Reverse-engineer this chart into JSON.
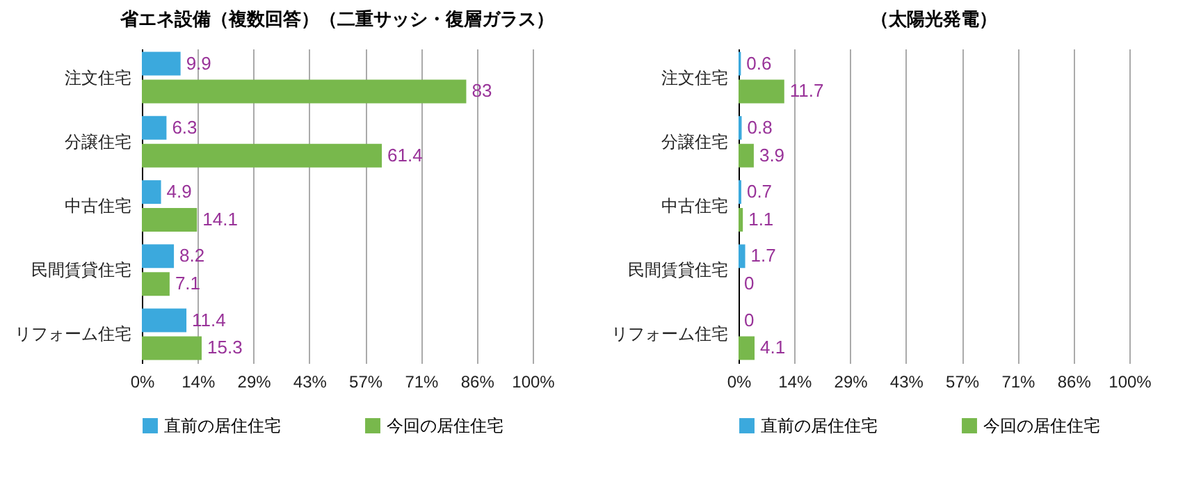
{
  "chart_data": [
    {
      "type": "bar",
      "orientation": "horizontal",
      "title": "省エネ設備（複数回答）（二重サッシ・復層ガラス）",
      "categories": [
        "注文住宅",
        "分譲住宅",
        "中古住宅",
        "民間賃貸住宅",
        "リフォーム住宅"
      ],
      "series": [
        {
          "name": "直前の居住住宅",
          "color": "#3ba9dd",
          "values": [
            9.9,
            6.3,
            4.9,
            8.2,
            11.4
          ]
        },
        {
          "name": "今回の居住住宅",
          "color": "#78b84c",
          "values": [
            83,
            61.4,
            14.1,
            7.1,
            15.3
          ]
        }
      ],
      "xlim": [
        0,
        100
      ],
      "xticks": [
        {
          "value": 0,
          "label": "0%"
        },
        {
          "value": 14.2857,
          "label": "14%"
        },
        {
          "value": 28.5714,
          "label": "29%"
        },
        {
          "value": 42.8571,
          "label": "43%"
        },
        {
          "value": 57.1429,
          "label": "57%"
        },
        {
          "value": 71.4286,
          "label": "71%"
        },
        {
          "value": 85.7143,
          "label": "86%"
        },
        {
          "value": 100,
          "label": "100%"
        }
      ],
      "grid": "x",
      "legend": "bottom",
      "data_labels": true
    },
    {
      "type": "bar",
      "orientation": "horizontal",
      "title": "（太陽光発電）",
      "categories": [
        "注文住宅",
        "分譲住宅",
        "中古住宅",
        "民間賃貸住宅",
        "リフォーム住宅"
      ],
      "series": [
        {
          "name": "直前の居住住宅",
          "color": "#3ba9dd",
          "values": [
            0.6,
            0.8,
            0.7,
            1.7,
            0
          ]
        },
        {
          "name": "今回の居住住宅",
          "color": "#78b84c",
          "values": [
            11.7,
            3.9,
            1.1,
            0,
            4.1
          ]
        }
      ],
      "xlim": [
        0,
        100
      ],
      "xticks": [
        {
          "value": 0,
          "label": "0%"
        },
        {
          "value": 14.2857,
          "label": "14%"
        },
        {
          "value": 28.5714,
          "label": "29%"
        },
        {
          "value": 42.8571,
          "label": "43%"
        },
        {
          "value": 57.1429,
          "label": "57%"
        },
        {
          "value": 71.4286,
          "label": "71%"
        },
        {
          "value": 85.7143,
          "label": "86%"
        },
        {
          "value": 100,
          "label": "100%"
        }
      ],
      "grid": "x",
      "legend": "bottom",
      "data_labels": true
    }
  ]
}
